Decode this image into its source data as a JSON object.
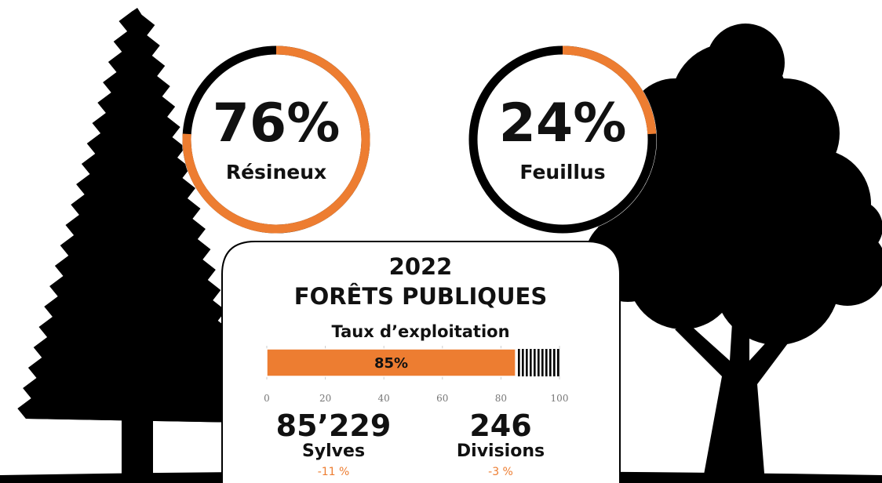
{
  "chart_data": [
    {
      "type": "donut",
      "values": [
        76
      ],
      "value_labels": [
        "76%"
      ],
      "categories": [
        "Résineux"
      ],
      "color": "#ed7d31",
      "rest_color": "#000000",
      "ylim": [
        0,
        100
      ]
    },
    {
      "type": "donut",
      "values": [
        24
      ],
      "value_labels": [
        "24%"
      ],
      "categories": [
        "Feuillus"
      ],
      "color": "#ed7d31",
      "rest_color": "#000000",
      "ylim": [
        0,
        100
      ]
    },
    {
      "type": "bar",
      "title": "Taux d’exploitation",
      "values": [
        85
      ],
      "value_labels": [
        "85%"
      ],
      "color": "#ed7d31",
      "xlim": [
        0,
        100
      ],
      "xticks": [
        0,
        20,
        40,
        60,
        80,
        100
      ]
    }
  ],
  "header": {
    "year": "2022",
    "title": "FORÊTS PUBLIQUES"
  },
  "stats": [
    {
      "value": "85’229",
      "label": "Sylves",
      "change": "-11 %"
    },
    {
      "value": "246",
      "label": "Divisions",
      "change": "-3 %"
    }
  ]
}
